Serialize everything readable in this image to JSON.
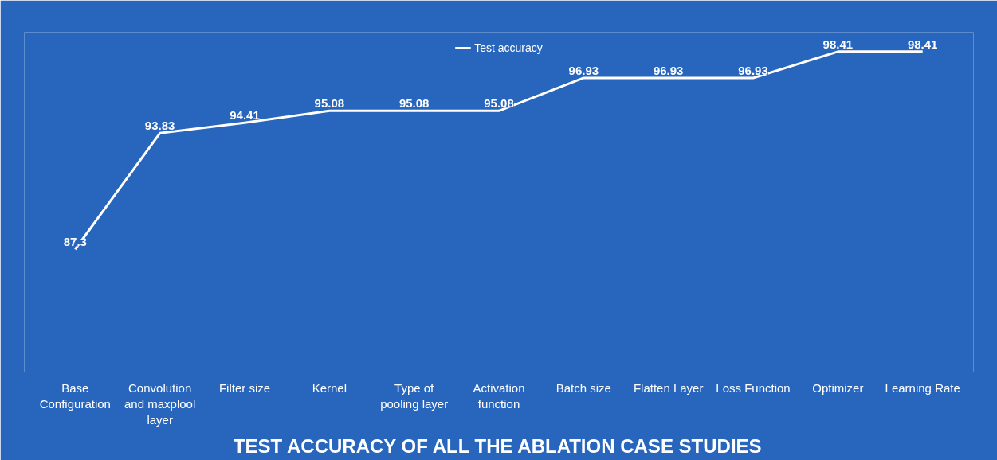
{
  "chart_data": {
    "type": "line",
    "title": "TEST ACCURACY OF ALL THE ABLATION CASE STUDIES",
    "categories": [
      "Base Configuration",
      "Convolution and maxplool layer",
      "Filter size",
      "Kernel",
      "Type of pooling layer",
      "Activation function",
      "Batch size",
      "Flatten Layer",
      "Loss Function",
      "Optimizer",
      "Learning Rate"
    ],
    "series": [
      {
        "name": "Test accuracy",
        "color": "#ffffff",
        "values": [
          87.3,
          93.83,
          94.41,
          95.08,
          95.08,
          95.08,
          96.93,
          96.93,
          96.93,
          98.41,
          98.41
        ]
      }
    ],
    "ylim": [
      80.4,
      99.5
    ],
    "data_labels": true,
    "legend": "top",
    "grid": false,
    "marker": "none",
    "line_style": "solid",
    "tick_labels": "x"
  }
}
